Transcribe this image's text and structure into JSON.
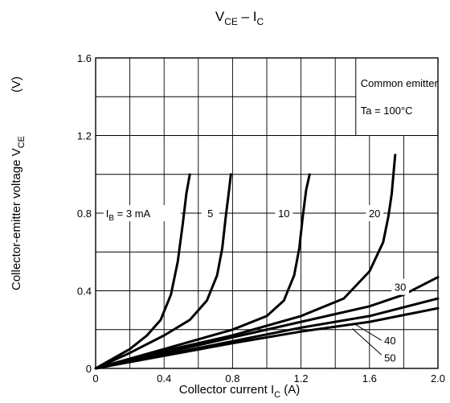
{
  "chart_data": {
    "type": "line",
    "title": {
      "main": "V",
      "sub": "CE",
      "rest": " – I",
      "sub2": "C"
    },
    "xlabel": {
      "main": "Collector current   I",
      "sub": "C",
      "rest": "  (A)"
    },
    "ylabel": {
      "main": "Collector-emitter voltage   V",
      "sub": "CE",
      "unit": "(V)"
    },
    "xlim": [
      0,
      2.0
    ],
    "ylim": [
      0,
      1.6
    ],
    "x_ticks": [
      {
        "value": 0,
        "label": "0"
      },
      {
        "value": 0.4,
        "label": "0.4"
      },
      {
        "value": 0.8,
        "label": "0.8"
      },
      {
        "value": 1.2,
        "label": "1.2"
      },
      {
        "value": 1.6,
        "label": "1.6"
      },
      {
        "value": 2.0,
        "label": "2.0"
      }
    ],
    "y_ticks": [
      {
        "value": 0,
        "label": "0"
      },
      {
        "value": 0.4,
        "label": "0.4"
      },
      {
        "value": 0.8,
        "label": "0.8"
      },
      {
        "value": 1.2,
        "label": "1.2"
      },
      {
        "value": 1.6,
        "label": "1.6"
      }
    ],
    "grid": {
      "x_step": 0.2,
      "y_step": 0.2
    },
    "annotations": [
      "Common emitter",
      "Ta = 100°C"
    ],
    "series": [
      {
        "name": "IB = 3 mA",
        "label_text": {
          "pre": "I",
          "sub": "B",
          "post": " = 3 mA"
        },
        "x": [
          0,
          0.1,
          0.2,
          0.3,
          0.38,
          0.44,
          0.48,
          0.51,
          0.53,
          0.55
        ],
        "y": [
          0,
          0.05,
          0.1,
          0.17,
          0.25,
          0.38,
          0.55,
          0.75,
          0.9,
          1.0
        ]
      },
      {
        "name": "5",
        "label_text": {
          "pre": "",
          "sub": "",
          "post": "5"
        },
        "x": [
          0,
          0.2,
          0.4,
          0.55,
          0.65,
          0.71,
          0.74,
          0.76,
          0.78,
          0.79
        ],
        "y": [
          0,
          0.08,
          0.17,
          0.25,
          0.35,
          0.48,
          0.62,
          0.78,
          0.92,
          1.0
        ]
      },
      {
        "name": "10",
        "label_text": {
          "pre": "",
          "sub": "",
          "post": "10"
        },
        "x": [
          0,
          0.4,
          0.8,
          1.0,
          1.1,
          1.16,
          1.19,
          1.21,
          1.23,
          1.25
        ],
        "y": [
          0,
          0.1,
          0.2,
          0.27,
          0.35,
          0.48,
          0.62,
          0.78,
          0.92,
          1.0
        ]
      },
      {
        "name": "20",
        "label_text": {
          "pre": "",
          "sub": "",
          "post": "20"
        },
        "x": [
          0,
          0.4,
          0.8,
          1.2,
          1.45,
          1.6,
          1.68,
          1.71,
          1.73,
          1.74,
          1.75
        ],
        "y": [
          0,
          0.09,
          0.17,
          0.27,
          0.36,
          0.5,
          0.65,
          0.78,
          0.9,
          1.0,
          1.1
        ]
      },
      {
        "name": "30",
        "label_text": {
          "pre": "",
          "sub": "",
          "post": "30"
        },
        "x": [
          0,
          0.4,
          0.8,
          1.2,
          1.6,
          1.8,
          2.0
        ],
        "y": [
          0,
          0.08,
          0.16,
          0.24,
          0.32,
          0.38,
          0.47
        ]
      },
      {
        "name": "40",
        "label_text": {
          "pre": "",
          "sub": "",
          "post": "40"
        },
        "x": [
          0,
          0.4,
          0.8,
          1.2,
          1.6,
          2.0
        ],
        "y": [
          0,
          0.07,
          0.14,
          0.21,
          0.27,
          0.36
        ]
      },
      {
        "name": "50",
        "label_text": {
          "pre": "",
          "sub": "",
          "post": "50"
        },
        "x": [
          0,
          0.4,
          0.8,
          1.2,
          1.6,
          2.0
        ],
        "y": [
          0,
          0.065,
          0.13,
          0.19,
          0.24,
          0.31
        ]
      }
    ]
  }
}
